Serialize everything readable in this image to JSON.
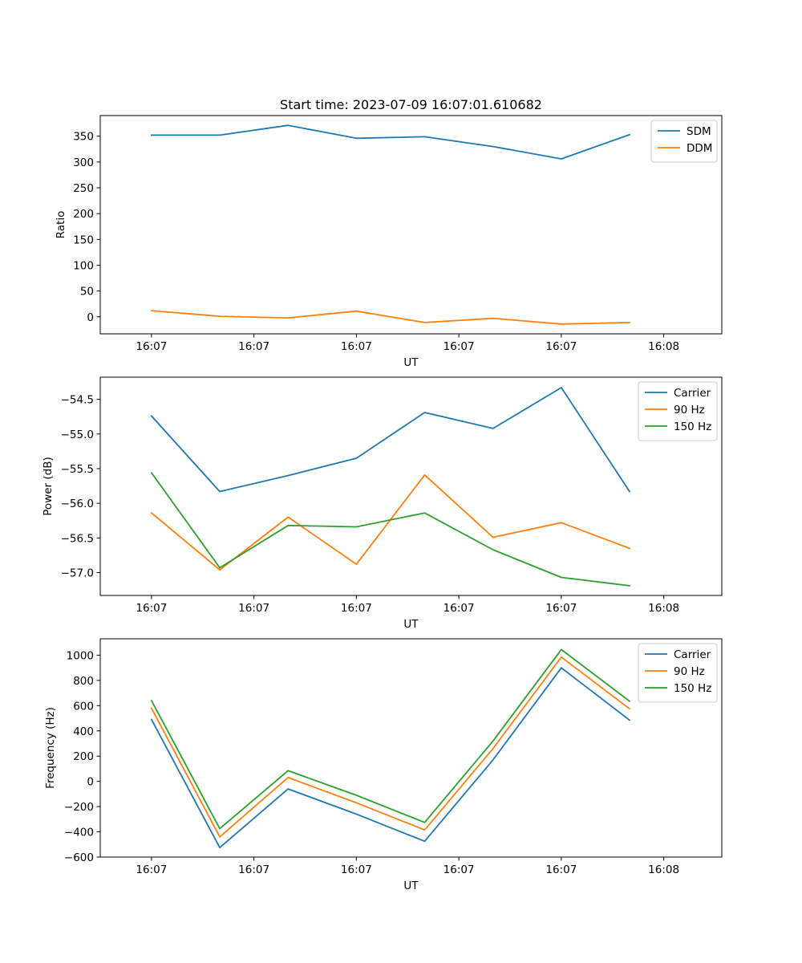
{
  "colors": {
    "c0": "#1f77b4",
    "c1": "#ff7f0e",
    "c2": "#2ca02c"
  },
  "chart_data": [
    {
      "type": "line",
      "title": "Start time: 2023-07-09 16:07:01.610682",
      "xlabel": "UT",
      "ylabel": "Ratio",
      "xlim": [
        -0.75,
        8.35
      ],
      "xticks": [
        {
          "x": 0,
          "label": "16:07"
        },
        {
          "x": 1.5,
          "label": "16:07"
        },
        {
          "x": 3,
          "label": "16:07"
        },
        {
          "x": 4.5,
          "label": "16:07"
        },
        {
          "x": 6,
          "label": "16:07"
        },
        {
          "x": 7.5,
          "label": "16:08"
        }
      ],
      "ylim": [
        -33,
        390
      ],
      "yticks": [
        {
          "v": 0,
          "label": "0"
        },
        {
          "v": 50,
          "label": "50"
        },
        {
          "v": 100,
          "label": "100"
        },
        {
          "v": 150,
          "label": "150"
        },
        {
          "v": 200,
          "label": "200"
        },
        {
          "v": 250,
          "label": "250"
        },
        {
          "v": 300,
          "label": "300"
        },
        {
          "v": 350,
          "label": "350"
        }
      ],
      "x": [
        0,
        1,
        2,
        3,
        4,
        5,
        6,
        7
      ],
      "series": [
        {
          "name": "SDM",
          "color": "#1f77b4",
          "values": [
            352,
            352,
            371,
            346,
            349,
            330,
            306,
            353
          ]
        },
        {
          "name": "DDM",
          "color": "#ff7f0e",
          "values": [
            12,
            1,
            -2,
            11,
            -11,
            -3,
            -14,
            -11
          ]
        }
      ]
    },
    {
      "type": "line",
      "title": "",
      "xlabel": "UT",
      "ylabel": "Power (dB)",
      "xlim": [
        -0.75,
        8.35
      ],
      "xticks": [
        {
          "x": 0,
          "label": "16:07"
        },
        {
          "x": 1.5,
          "label": "16:07"
        },
        {
          "x": 3,
          "label": "16:07"
        },
        {
          "x": 4.5,
          "label": "16:07"
        },
        {
          "x": 6,
          "label": "16:07"
        },
        {
          "x": 7.5,
          "label": "16:08"
        }
      ],
      "ylim": [
        -57.33,
        -54.18
      ],
      "yticks": [
        {
          "v": -57.0,
          "label": "−57.0"
        },
        {
          "v": -56.5,
          "label": "−56.5"
        },
        {
          "v": -56.0,
          "label": "−56.0"
        },
        {
          "v": -55.5,
          "label": "−55.5"
        },
        {
          "v": -55.0,
          "label": "−55.0"
        },
        {
          "v": -54.5,
          "label": "−54.5"
        }
      ],
      "x": [
        0,
        1,
        2,
        3,
        4,
        5,
        6,
        7
      ],
      "series": [
        {
          "name": "Carrier",
          "color": "#1f77b4",
          "values": [
            -54.74,
            -55.83,
            -55.6,
            -55.35,
            -54.69,
            -54.92,
            -54.33,
            -55.83
          ]
        },
        {
          "name": "90 Hz",
          "color": "#ff7f0e",
          "values": [
            -56.14,
            -56.96,
            -56.2,
            -56.88,
            -55.59,
            -56.49,
            -56.28,
            -56.65
          ]
        },
        {
          "name": "150 Hz",
          "color": "#2ca02c",
          "values": [
            -55.56,
            -56.93,
            -56.32,
            -56.34,
            -56.14,
            -56.67,
            -57.07,
            -57.19
          ]
        }
      ]
    },
    {
      "type": "line",
      "title": "",
      "xlabel": "UT",
      "ylabel": "Frequency (Hz)",
      "xlim": [
        -0.75,
        8.35
      ],
      "xticks": [
        {
          "x": 0,
          "label": "16:07"
        },
        {
          "x": 1.5,
          "label": "16:07"
        },
        {
          "x": 3,
          "label": "16:07"
        },
        {
          "x": 4.5,
          "label": "16:07"
        },
        {
          "x": 6,
          "label": "16:07"
        },
        {
          "x": 7.5,
          "label": "16:08"
        }
      ],
      "ylim": [
        -600,
        1130
      ],
      "yticks": [
        {
          "v": -600,
          "label": "−600"
        },
        {
          "v": -400,
          "label": "−400"
        },
        {
          "v": -200,
          "label": "−200"
        },
        {
          "v": 0,
          "label": "0"
        },
        {
          "v": 200,
          "label": "200"
        },
        {
          "v": 400,
          "label": "400"
        },
        {
          "v": 600,
          "label": "600"
        },
        {
          "v": 800,
          "label": "800"
        },
        {
          "v": 1000,
          "label": "1000"
        }
      ],
      "x": [
        0,
        1,
        2,
        3,
        4,
        5,
        6,
        7
      ],
      "series": [
        {
          "name": "Carrier",
          "color": "#1f77b4",
          "values": [
            490,
            -525,
            -60,
            -260,
            -475,
            170,
            900,
            485
          ]
        },
        {
          "name": "90 Hz",
          "color": "#ff7f0e",
          "values": [
            580,
            -440,
            30,
            -170,
            -385,
            260,
            985,
            575
          ]
        },
        {
          "name": "150 Hz",
          "color": "#2ca02c",
          "values": [
            640,
            -375,
            85,
            -110,
            -325,
            320,
            1045,
            635
          ]
        }
      ]
    }
  ]
}
